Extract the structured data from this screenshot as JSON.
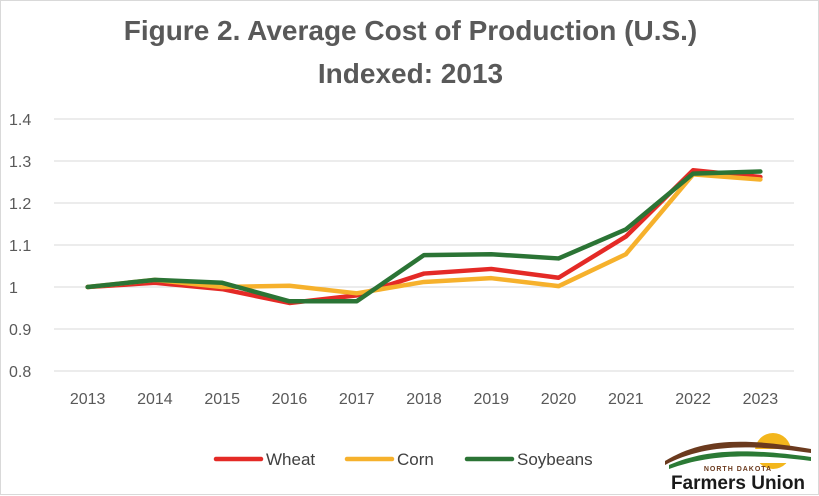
{
  "chart_data": {
    "type": "line",
    "title": "Figure 2. Average Cost of Production (U.S.)",
    "subtitle": "Indexed: 2013",
    "xlabel": "",
    "ylabel": "",
    "categories": [
      "2013",
      "2014",
      "2015",
      "2016",
      "2017",
      "2018",
      "2019",
      "2020",
      "2021",
      "2022",
      "2023"
    ],
    "ylim": [
      0.8,
      1.4
    ],
    "yticks": [
      0.8,
      0.9,
      1,
      1.1,
      1.2,
      1.3,
      1.4
    ],
    "grid": true,
    "legend": "bottom",
    "series": [
      {
        "name": "Wheat",
        "color": "#e42a26",
        "values": [
          1.0,
          1.01,
          0.995,
          0.962,
          0.98,
          1.032,
          1.043,
          1.022,
          1.12,
          1.278,
          1.262
        ]
      },
      {
        "name": "Corn",
        "color": "#f6b12c",
        "values": [
          1.0,
          1.017,
          1.0,
          1.003,
          0.985,
          1.012,
          1.021,
          1.002,
          1.078,
          1.268,
          1.256
        ]
      },
      {
        "name": "Soybeans",
        "color": "#2b7435",
        "values": [
          1.0,
          1.017,
          1.01,
          0.966,
          0.966,
          1.076,
          1.078,
          1.068,
          1.137,
          1.27,
          1.275
        ]
      }
    ]
  },
  "logo": {
    "top_text": "NORTH DAKOTA",
    "main_text": "Farmers Union",
    "colors": {
      "brown": "#6b3a1e",
      "green": "#2b7a35",
      "yellow": "#f3b61c"
    }
  }
}
